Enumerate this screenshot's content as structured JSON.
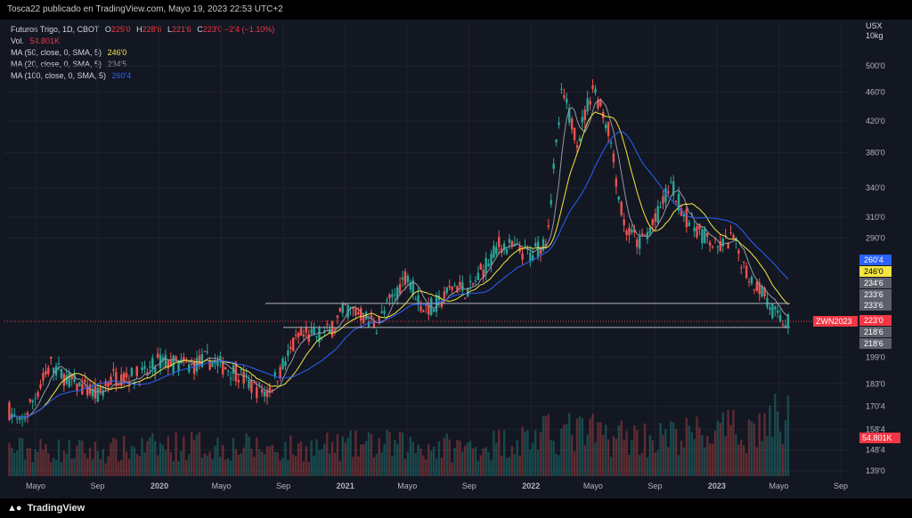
{
  "header": {
    "publish_text": "Tosca22 publicado en TradingView.com, Mayo 19, 2023 22:53 UTC+2"
  },
  "footer": {
    "brand": "TradingView",
    "logo_icon": "tradingview-logo-icon"
  },
  "legend": {
    "symbol": "Futuros Trigo, 1D, CBOT",
    "ohlc": [
      {
        "label": "O",
        "value": "225'0"
      },
      {
        "label": "H",
        "value": "228'6"
      },
      {
        "label": "L",
        "value": "221'6"
      },
      {
        "label": "C",
        "value": "223'0"
      }
    ],
    "change": "−2'4 (−1.10%)",
    "volume_label": "Vol.",
    "volume_value": "54.801K",
    "ma": [
      {
        "label": "MA (50, close, 0, SMA, 5)",
        "value": "246'0",
        "color": "#f5e642"
      },
      {
        "label": "MA (20, close, 0, SMA, 5)",
        "value": "234'5",
        "color": "#9598a1"
      },
      {
        "label": "MA (100, close, 0, SMA, 5)",
        "value": "260'4",
        "color": "#2962ff"
      }
    ]
  },
  "axis_unit": {
    "line1": "USX",
    "line2": "10kg"
  },
  "colors": {
    "background": "#131722",
    "up": "#26a69a",
    "down": "#ef5350",
    "ma50": "#f5e642",
    "ma20": "#9598a1",
    "ma100": "#2962ff",
    "price_line": "#f23645",
    "hline": "#b2b5be"
  },
  "chart_data": {
    "type": "candlestick",
    "title": "Futuros Trigo, 1D, CBOT",
    "symbol_label": "ZWN2023",
    "y_scale": "log",
    "ylim": [
      137,
      560
    ],
    "y_ticks": [
      "500'0",
      "460'0",
      "420'0",
      "380'0",
      "340'0",
      "310'0",
      "290'0",
      "199'0",
      "183'0",
      "170'4",
      "158'4",
      "148'4",
      "139'0"
    ],
    "x_ticks": [
      {
        "label": "Mayo",
        "bold": false,
        "date": "2019-05"
      },
      {
        "label": "Sep",
        "bold": false,
        "date": "2019-09"
      },
      {
        "label": "2020",
        "bold": true,
        "date": "2020-01"
      },
      {
        "label": "Mayo",
        "bold": false,
        "date": "2020-05"
      },
      {
        "label": "Sep",
        "bold": false,
        "date": "2020-09"
      },
      {
        "label": "2021",
        "bold": true,
        "date": "2021-01"
      },
      {
        "label": "Mayo",
        "bold": false,
        "date": "2021-05"
      },
      {
        "label": "Sep",
        "bold": false,
        "date": "2021-09"
      },
      {
        "label": "2022",
        "bold": true,
        "date": "2022-01"
      },
      {
        "label": "Mayo",
        "bold": false,
        "date": "2022-05"
      },
      {
        "label": "Sep",
        "bold": false,
        "date": "2022-09"
      },
      {
        "label": "2023",
        "bold": true,
        "date": "2023-01"
      },
      {
        "label": "Mayo",
        "bold": false,
        "date": "2023-05"
      },
      {
        "label": "Sep",
        "bold": false,
        "date": "2023-09"
      }
    ],
    "price_path": [
      [
        "2019-03",
        172
      ],
      [
        "2019-04",
        160
      ],
      [
        "2019-06",
        195
      ],
      [
        "2019-07",
        186
      ],
      [
        "2019-09",
        176
      ],
      [
        "2019-10",
        187
      ],
      [
        "2019-12",
        188
      ],
      [
        "2020-01",
        197
      ],
      [
        "2020-03",
        193
      ],
      [
        "2020-04",
        198
      ],
      [
        "2020-06",
        190
      ],
      [
        "2020-07",
        181
      ],
      [
        "2020-08",
        178
      ],
      [
        "2020-09",
        195
      ],
      [
        "2020-10",
        212
      ],
      [
        "2020-11",
        213
      ],
      [
        "2020-12",
        216
      ],
      [
        "2021-01",
        232
      ],
      [
        "2021-02",
        228
      ],
      [
        "2021-03",
        220
      ],
      [
        "2021-05",
        260
      ],
      [
        "2021-06",
        232
      ],
      [
        "2021-07",
        235
      ],
      [
        "2021-08",
        250
      ],
      [
        "2021-09",
        245
      ],
      [
        "2021-10",
        265
      ],
      [
        "2021-11",
        285
      ],
      [
        "2021-12",
        280
      ],
      [
        "2022-01",
        275
      ],
      [
        "2022-02",
        290
      ],
      [
        "2022-03",
        460
      ],
      [
        "2022-04",
        395
      ],
      [
        "2022-05",
        470
      ],
      [
        "2022-06",
        410
      ],
      [
        "2022-07",
        300
      ],
      [
        "2022-08",
        285
      ],
      [
        "2022-09",
        305
      ],
      [
        "2022-10",
        345
      ],
      [
        "2022-11",
        310
      ],
      [
        "2022-12",
        295
      ],
      [
        "2023-01",
        280
      ],
      [
        "2023-02",
        290
      ],
      [
        "2023-03",
        258
      ],
      [
        "2023-04",
        245
      ],
      [
        "2023-05",
        223
      ]
    ],
    "volume": [
      [
        "2019-03",
        26000
      ],
      [
        "2019-09",
        24000
      ],
      [
        "2020-03",
        30000
      ],
      [
        "2020-09",
        26000
      ],
      [
        "2021-03",
        30000
      ],
      [
        "2021-09",
        27000
      ],
      [
        "2022-03",
        42000
      ],
      [
        "2022-09",
        36000
      ],
      [
        "2023-03",
        44000
      ],
      [
        "2023-05",
        54801
      ]
    ],
    "moving_averages": [
      {
        "name": "MA (50, close, 0, SMA, 5)",
        "last": "246'0",
        "color": "#f5e642"
      },
      {
        "name": "MA (20, close, 0, SMA, 5)",
        "last": "234'5",
        "color": "#9598a1"
      },
      {
        "name": "MA (100, close, 0, SMA, 5)",
        "last": "260'4",
        "color": "#2962ff"
      }
    ],
    "horizontal_lines": [
      236,
      218.75
    ],
    "price_tags": [
      {
        "text": "260'4",
        "value": 260.5,
        "kind": "ma100"
      },
      {
        "text": "246'0",
        "value": 246,
        "kind": "ma50"
      },
      {
        "text": "234'6",
        "value": 235.5,
        "kind": "gray"
      },
      {
        "text": "233'6",
        "value": 233,
        "kind": "gray"
      },
      {
        "text": "233'6",
        "value": 230.5,
        "kind": "gray"
      },
      {
        "text": "223'0",
        "value": 223,
        "kind": "last"
      },
      {
        "text": "218'6",
        "value": 219.5,
        "kind": "gray"
      },
      {
        "text": "218'6",
        "value": 216,
        "kind": "gray"
      }
    ],
    "volume_tag": "54.801K"
  }
}
